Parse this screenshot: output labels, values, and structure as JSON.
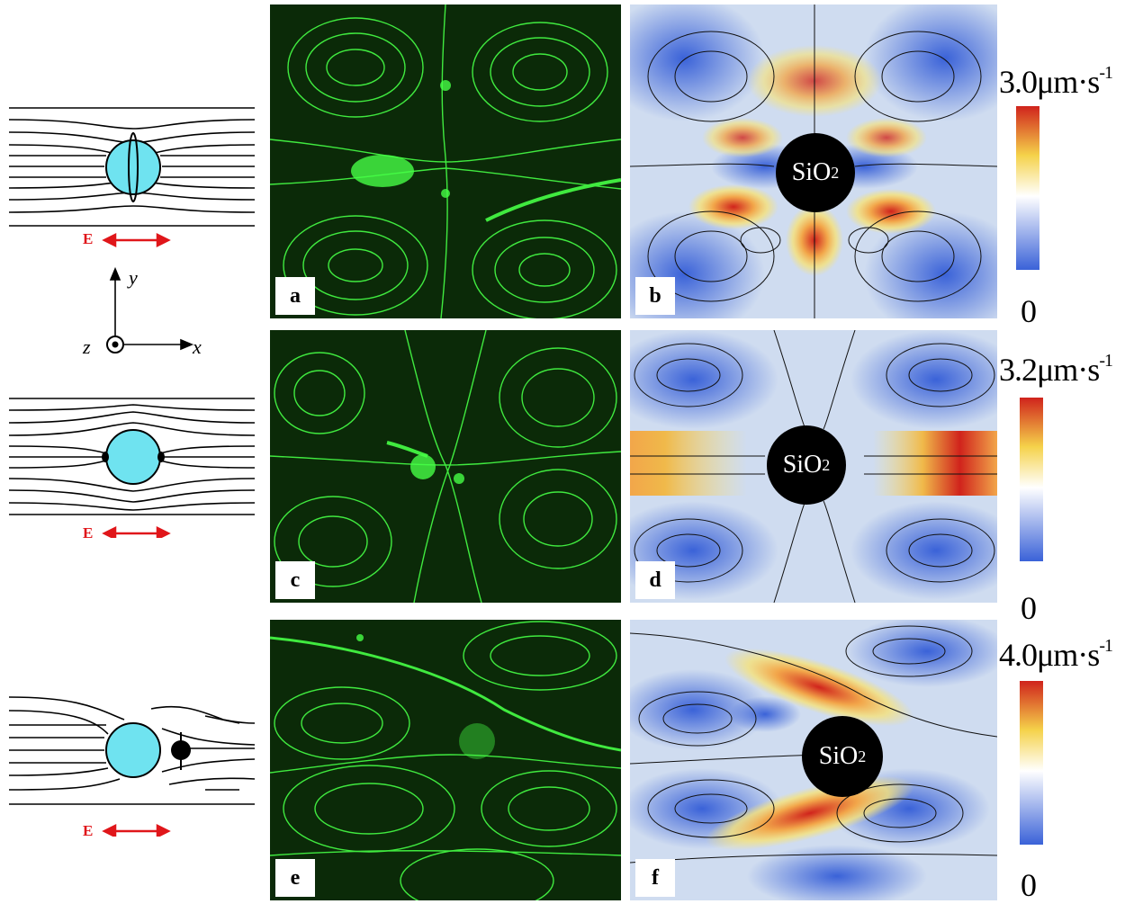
{
  "schematics": [
    {
      "id": "top",
      "field_label": "E"
    },
    {
      "id": "middle",
      "field_label": "E"
    },
    {
      "id": "bottom",
      "field_label": "E"
    }
  ],
  "axes": {
    "x": "x",
    "y": "y",
    "z": "z"
  },
  "panels": [
    {
      "tag": "a",
      "kind": "experiment"
    },
    {
      "tag": "b",
      "kind": "simulation",
      "particle": "SiO",
      "particle_sub": "2"
    },
    {
      "tag": "c",
      "kind": "experiment"
    },
    {
      "tag": "d",
      "kind": "simulation",
      "particle": "SiO",
      "particle_sub": "2"
    },
    {
      "tag": "e",
      "kind": "experiment"
    },
    {
      "tag": "f",
      "kind": "simulation",
      "particle": "SiO",
      "particle_sub": "2"
    }
  ],
  "colorbars": [
    {
      "max": "3.0",
      "unit": "μm·s",
      "exp": "-1",
      "min": "0"
    },
    {
      "max": "3.2",
      "unit": "μm·s",
      "exp": "-1",
      "min": "0"
    },
    {
      "max": "4.0",
      "unit": "μm·s",
      "exp": "-1",
      "min": "0"
    }
  ],
  "colors": {
    "arrow": "#e0161a",
    "sphere": "#6fe3f0",
    "green": "#3dff3d",
    "low": "#3a62d8",
    "high": "#d0231c"
  }
}
